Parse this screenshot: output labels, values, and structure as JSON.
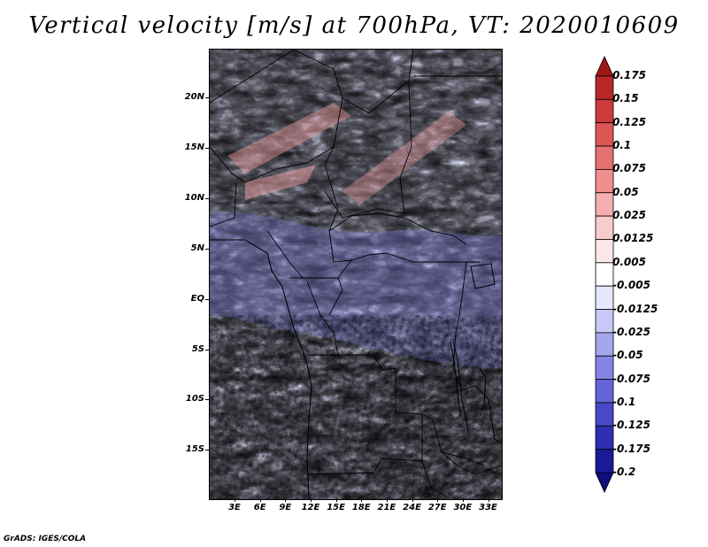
{
  "title": "Vertical velocity [m/s] at 700hPa, VT: 2020010609",
  "credit": "GrADS: IGES/COLA",
  "latitude_labels": [
    "20N",
    "15N",
    "10N",
    "5N",
    "EQ",
    "5S",
    "10S",
    "15S"
  ],
  "longitude_labels": [
    "3E",
    "6E",
    "9E",
    "12E",
    "15E",
    "18E",
    "21E",
    "24E",
    "27E",
    "30E",
    "33E"
  ],
  "colorbar": {
    "labels": [
      "0.175",
      "0.15",
      "0.125",
      "0.1",
      "0.075",
      "0.05",
      "0.025",
      "0.0125",
      "0.005",
      "-0.005",
      "-0.0125",
      "-0.025",
      "-0.05",
      "-0.075",
      "-0.1",
      "-0.125",
      "-0.175",
      "-0.2"
    ],
    "colors": [
      "#a01818",
      "#b82828",
      "#cc3a3a",
      "#dc5656",
      "#e57070",
      "#ee8e8e",
      "#f4aeae",
      "#f8cccc",
      "#fce6e6",
      "#ffffff",
      "#e6e6fc",
      "#c8c8f6",
      "#a6a6ee",
      "#8484e4",
      "#6464d8",
      "#4848c8",
      "#2e2eb0",
      "#1a1a96",
      "#0e0e7e"
    ]
  }
}
